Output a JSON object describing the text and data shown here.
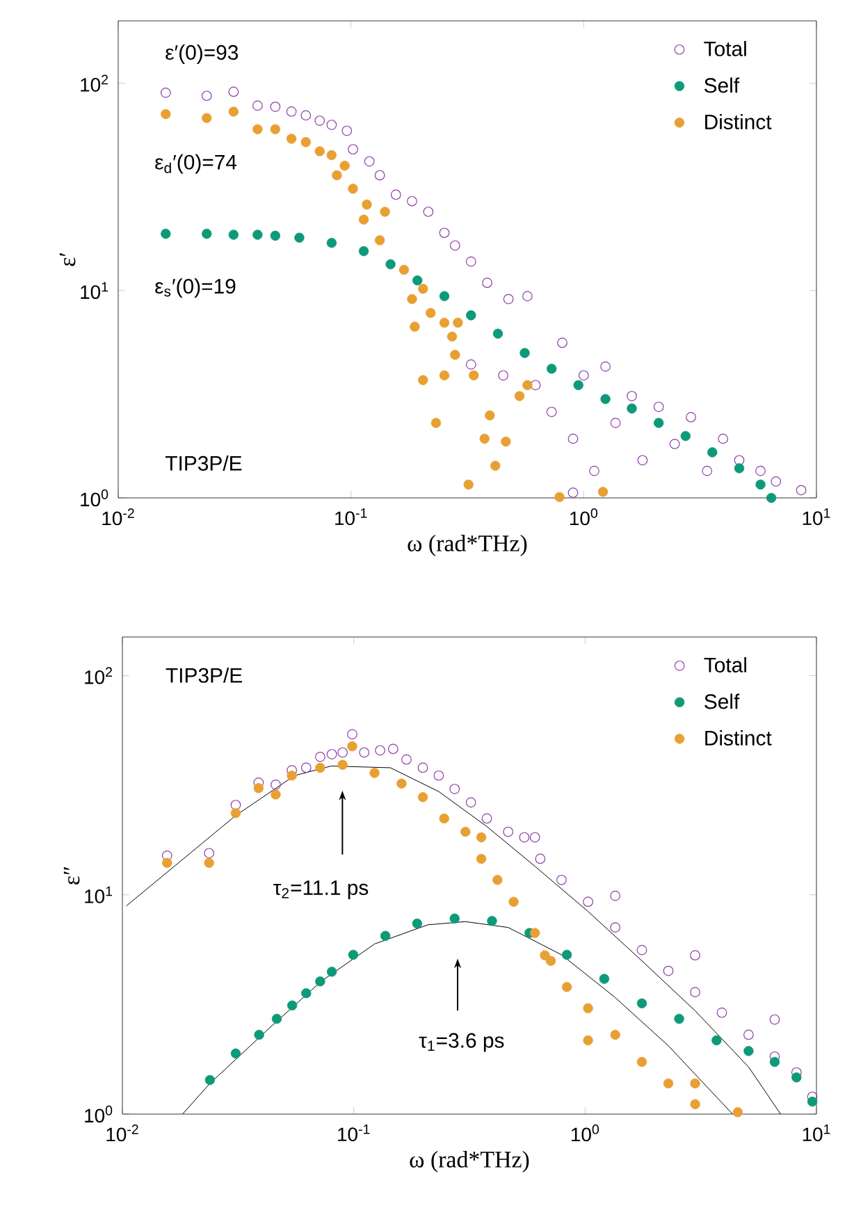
{
  "chart_data": [
    {
      "type": "scatter",
      "xlabel": "ω (rad*THz)",
      "ylabel": "ε′",
      "log": "xy",
      "legend": "top right",
      "xlim": [
        0.01,
        10
      ],
      "ylim": [
        1,
        200
      ],
      "xticks": [
        {
          "value": 0.01,
          "label": "10$^{-2}$"
        },
        {
          "value": 0.1,
          "label": "10$^{-1}$"
        },
        {
          "value": 1,
          "label": "10$^{0}$"
        },
        {
          "value": 10,
          "label": "10$^{1}$"
        }
      ],
      "yticks": [
        {
          "value": 1,
          "label": "10$^{0}$"
        },
        {
          "value": 10,
          "label": "10$^{1}$"
        },
        {
          "value": 100,
          "label": "10$^{2}$"
        }
      ],
      "annotations": [
        "ε′(0)=93",
        "ε$_{d}$′(0)=74",
        "ε$_{s}$′(0)=19",
        "TIP3P/E"
      ],
      "series": [
        {
          "name": "Total",
          "color": "#8e3da8",
          "marker": "circle",
          "x": [
            0.016,
            0.024,
            0.0313,
            0.0397,
            0.0473,
            0.0555,
            0.064,
            0.0734,
            0.0826,
            0.096,
            0.102,
            0.12,
            0.133,
            0.156,
            0.183,
            0.215,
            0.252,
            0.28,
            0.328,
            0.385,
            0.475,
            0.573,
            0.328,
            0.451,
            0.621,
            0.728,
            0.809,
            0.9,
            1.0,
            1.11,
            1.24,
            1.37,
            1.61,
            1.79,
            2.1,
            2.46,
            2.89,
            3.39,
            3.97,
            4.66,
            5.75,
            6.7,
            8.6,
            0.9
          ],
          "values": [
            90,
            87,
            91,
            78,
            77,
            73,
            70,
            66,
            63,
            59,
            48,
            42,
            36,
            29,
            27,
            24,
            19,
            16.5,
            13.8,
            10.9,
            9.1,
            9.4,
            4.4,
            3.9,
            3.5,
            2.6,
            5.6,
            1.93,
            3.9,
            1.35,
            4.3,
            2.3,
            3.1,
            1.52,
            2.75,
            1.82,
            2.45,
            1.35,
            1.93,
            1.52,
            1.35,
            1.2,
            1.09,
            1.06
          ]
        },
        {
          "name": "Self",
          "color": "#0e9a78",
          "marker": "circle",
          "x": [
            0.016,
            0.024,
            0.0313,
            0.0397,
            0.0473,
            0.06,
            0.0826,
            0.1135,
            0.148,
            0.193,
            0.252,
            0.328,
            0.428,
            0.558,
            0.728,
            0.949,
            1.24,
            1.61,
            2.1,
            2.74,
            3.57,
            4.66,
            5.75,
            6.4
          ],
          "values": [
            18.8,
            18.8,
            18.6,
            18.6,
            18.4,
            18.0,
            17.0,
            15.5,
            13.4,
            11.2,
            9.4,
            7.6,
            6.2,
            5.0,
            4.2,
            3.5,
            3.0,
            2.7,
            2.3,
            1.99,
            1.66,
            1.39,
            1.16,
            1.0
          ]
        },
        {
          "name": "Distinct",
          "color": "#e8a033",
          "marker": "circle",
          "x": [
            0.016,
            0.024,
            0.0313,
            0.0397,
            0.0473,
            0.0555,
            0.064,
            0.0734,
            0.0826,
            0.094,
            0.087,
            0.102,
            0.117,
            0.1135,
            0.14,
            0.133,
            0.169,
            0.204,
            0.183,
            0.22,
            0.252,
            0.288,
            0.272,
            0.28,
            0.188,
            0.204,
            0.252,
            0.337,
            0.232,
            0.395,
            0.375,
            0.463,
            0.417,
            0.53,
            0.573,
            0.32,
            0.787,
            1.21
          ],
          "values": [
            71,
            68,
            73,
            60,
            60,
            54,
            52,
            47,
            45,
            40,
            36,
            31,
            26,
            22,
            24,
            17.5,
            12.6,
            10.2,
            9.1,
            7.8,
            7.0,
            7.0,
            6.0,
            4.9,
            6.7,
            3.7,
            3.9,
            3.9,
            2.3,
            2.5,
            1.93,
            1.87,
            1.43,
            3.1,
            3.5,
            1.16,
            1.01,
            1.07
          ]
        }
      ]
    },
    {
      "type": "scatter",
      "xlabel": "ω (rad*THz)",
      "ylabel": "ε″",
      "log": "xy",
      "legend": "top right",
      "xlim": [
        0.01,
        10
      ],
      "ylim": [
        1,
        150
      ],
      "xticks": [
        {
          "value": 0.01,
          "label": "10$^{-2}$"
        },
        {
          "value": 0.1,
          "label": "10$^{-1}$"
        },
        {
          "value": 1,
          "label": "10$^{0}$"
        },
        {
          "value": 10,
          "label": "10$^{1}$"
        }
      ],
      "yticks": [
        {
          "value": 1,
          "label": "10$^{0}$"
        },
        {
          "value": 10,
          "label": "10$^{1}$"
        },
        {
          "value": 100,
          "label": "10$^{2}$"
        }
      ],
      "annotations": [
        "TIP3P/E",
        "τ$_{2}$=11.1 ps",
        "τ$_{1}$=3.6 ps"
      ],
      "series": [
        {
          "name": "Total",
          "color": "#8e3da8",
          "marker": "circle",
          "x": [
            0.0156,
            0.0237,
            0.0309,
            0.0388,
            0.046,
            0.054,
            0.0623,
            0.0716,
            0.0804,
            0.0895,
            0.0985,
            0.111,
            0.13,
            0.148,
            0.169,
            0.199,
            0.233,
            0.273,
            0.321,
            0.376,
            0.465,
            0.546,
            0.64,
            0.791,
            1.03,
            1.35,
            1.76,
            2.29,
            2.99,
            3.9,
            5.09,
            6.6,
            8.2,
            9.6,
            0.607,
            1.35,
            2.99,
            6.6
          ],
          "values": [
            15.1,
            15.5,
            25.7,
            32.5,
            31.8,
            37,
            38,
            42.6,
            43.8,
            44.6,
            54,
            44.6,
            45.6,
            46.3,
            41.4,
            38,
            35,
            30.4,
            26.4,
            22.3,
            19.4,
            18.3,
            14.6,
            11.7,
            9.3,
            7.1,
            5.6,
            4.5,
            3.6,
            2.9,
            2.3,
            1.83,
            1.55,
            1.2,
            18.3,
            9.9,
            5.3,
            2.7
          ]
        },
        {
          "name": "Self",
          "color": "#0e9a78",
          "marker": "circle",
          "x": [
            0.0239,
            0.0309,
            0.039,
            0.0465,
            0.0542,
            0.0623,
            0.0716,
            0.0804,
            0.0995,
            0.137,
            0.188,
            0.273,
            0.396,
            0.575,
            0.834,
            1.21,
            1.76,
            2.55,
            3.7,
            5.09,
            6.6,
            8.2,
            9.6
          ],
          "values": [
            1.43,
            1.89,
            2.3,
            2.72,
            3.13,
            3.56,
            4.03,
            4.46,
            5.33,
            6.5,
            7.4,
            7.8,
            7.6,
            6.7,
            5.33,
            4.14,
            3.2,
            2.72,
            2.17,
            1.94,
            1.73,
            1.47,
            1.14
          ]
        },
        {
          "name": "Distinct",
          "color": "#e8a033",
          "marker": "circle",
          "x": [
            0.0156,
            0.0237,
            0.0309,
            0.0388,
            0.046,
            0.054,
            0.0716,
            0.0895,
            0.0985,
            0.123,
            0.161,
            0.199,
            0.246,
            0.304,
            0.356,
            0.418,
            0.491,
            0.607,
            0.711,
            0.834,
            1.03,
            1.35,
            1.76,
            2.29,
            2.99,
            4.57,
            0.67,
            1.03,
            2.99,
            0.356
          ],
          "values": [
            14.0,
            14.0,
            23.6,
            30.7,
            28.7,
            35,
            38,
            39.2,
            47.6,
            36,
            32.2,
            27.9,
            22.3,
            19.4,
            14.6,
            11.7,
            9.3,
            6.7,
            5.0,
            3.8,
            3.04,
            2.3,
            1.73,
            1.38,
            1.11,
            1.02,
            5.3,
            2.17,
            1.38,
            18.3
          ]
        },
        {
          "type": "line",
          "color": "#000000",
          "marker": "none",
          "x": [
            0.0104,
            0.0309,
            0.0555,
            0.08,
            0.144,
            0.233,
            0.376,
            0.607,
            1.03,
            1.76,
            2.99,
            5.09,
            7.0
          ],
          "values": [
            8.9,
            23,
            35,
            38.7,
            38,
            29.6,
            20.5,
            13.5,
            8.4,
            5.0,
            2.96,
            1.64,
            1.0
          ]
        },
        {
          "type": "line",
          "color": "#000000",
          "marker": "none",
          "x": [
            0.0182,
            0.0239,
            0.0425,
            0.0723,
            0.123,
            0.209,
            0.304,
            0.465,
            0.791,
            1.35,
            2.29,
            4.34
          ],
          "values": [
            1.0,
            1.38,
            2.43,
            4.03,
            5.97,
            7.3,
            7.55,
            7.1,
            5.33,
            3.4,
            2.05,
            1.0
          ]
        }
      ]
    }
  ]
}
